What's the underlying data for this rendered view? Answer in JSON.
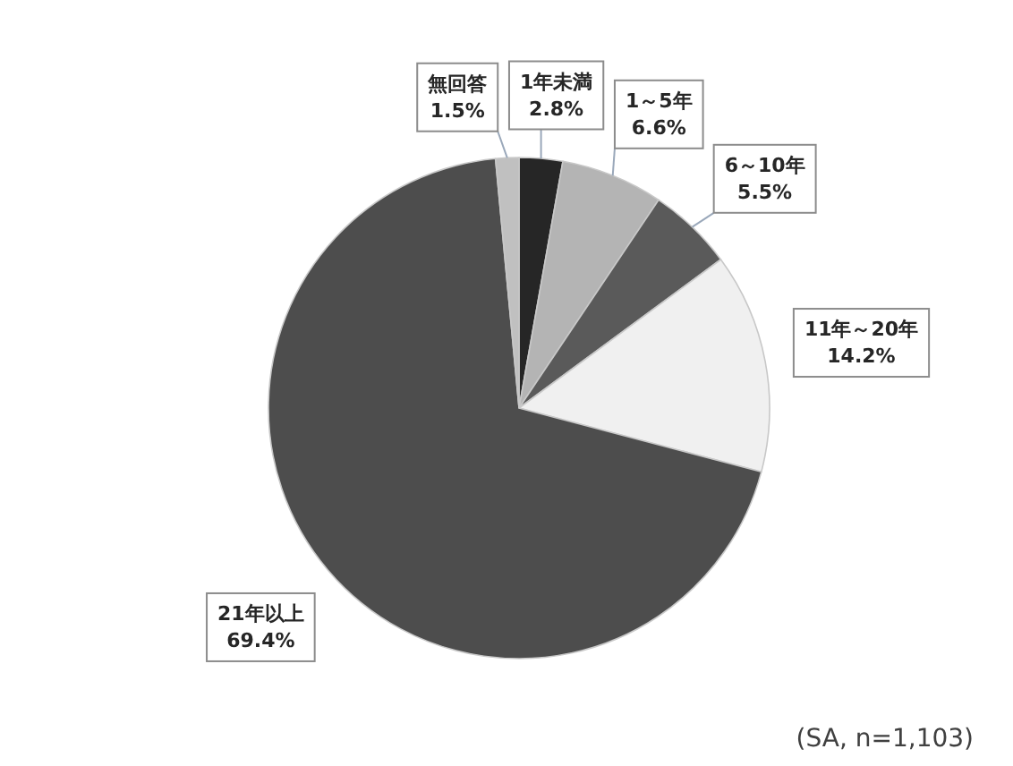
{
  "chart_data": {
    "type": "pie",
    "categories": [
      "1年未満",
      "1～5年",
      "6～10年",
      "11年～20年",
      "21年以上",
      "無回答"
    ],
    "values": [
      2.8,
      6.6,
      5.5,
      14.2,
      69.4,
      1.5
    ],
    "value_labels": [
      "2.8%",
      "6.6%",
      "5.5%",
      "14.2%",
      "69.4%",
      "1.5%"
    ],
    "colors": [
      "#262626",
      "#b4b4b4",
      "#5a5a5a",
      "#f0f0f0",
      "#4d4d4d",
      "#c0c0c0"
    ],
    "annotations": [
      "(SA, n=1,103)"
    ]
  }
}
